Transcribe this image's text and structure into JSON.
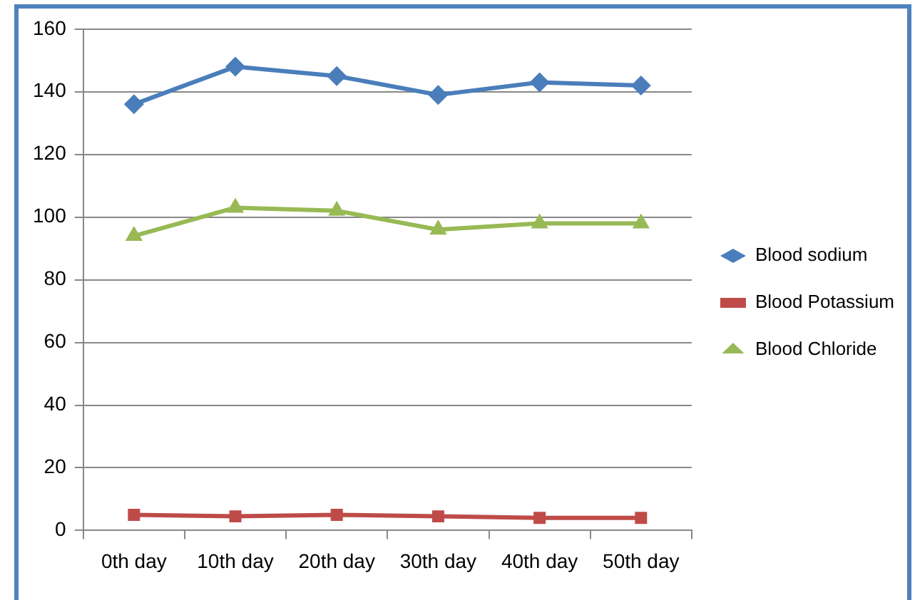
{
  "chart_data": {
    "type": "line",
    "categories": [
      "0th day",
      "10th day",
      "20th day",
      "30th day",
      "40th day",
      "50th day"
    ],
    "series": [
      {
        "name": "Blood sodium",
        "color": "#4a7ebb",
        "marker": "diamond",
        "values": [
          136,
          148,
          145,
          139,
          143,
          142
        ]
      },
      {
        "name": "Blood Potassium",
        "color": "#be4b48",
        "marker": "square",
        "values": [
          5,
          4.5,
          5,
          4.5,
          4,
          4
        ]
      },
      {
        "name": "Blood Chloride",
        "color": "#98b954",
        "marker": "triangle",
        "values": [
          94,
          103,
          102,
          96,
          98,
          98
        ]
      }
    ],
    "ylim": [
      0,
      160
    ],
    "yticks": [
      0,
      20,
      40,
      60,
      80,
      100,
      120,
      140,
      160
    ],
    "grid": "y",
    "legend": "right",
    "line_style": "solid"
  }
}
